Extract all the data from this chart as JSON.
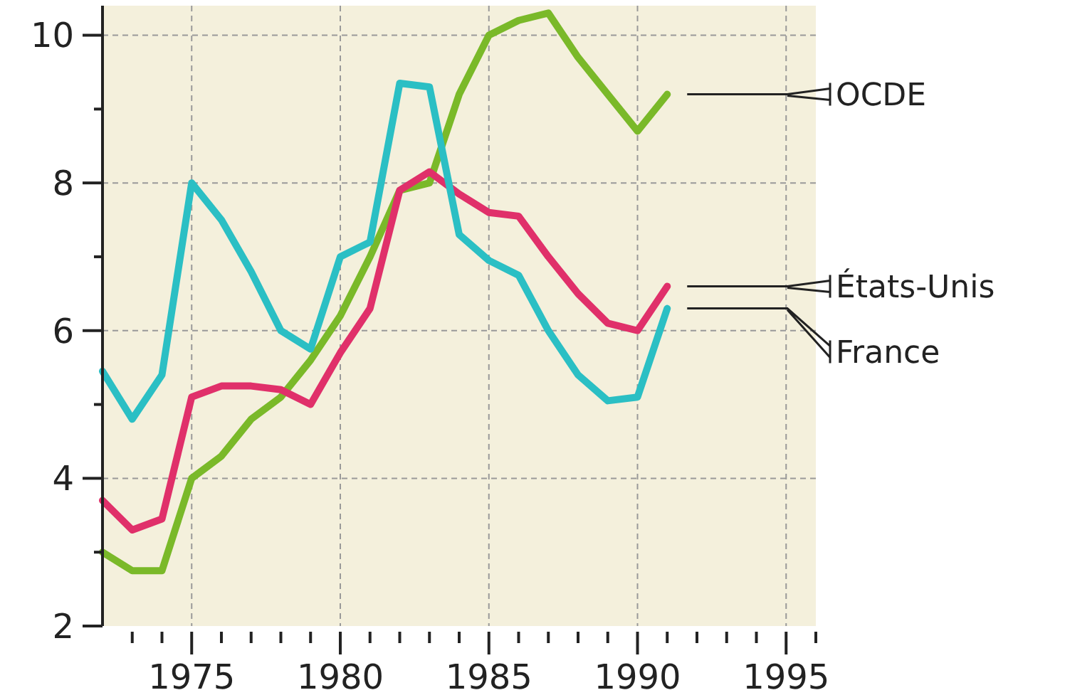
{
  "chart_data": {
    "type": "line",
    "x": [
      1972,
      1973,
      1974,
      1975,
      1976,
      1977,
      1978,
      1979,
      1980,
      1981,
      1982,
      1983,
      1984,
      1985,
      1986,
      1987,
      1988,
      1989,
      1990,
      1991
    ],
    "series": [
      {
        "name": "OCDE",
        "color": "#7ab929",
        "values": [
          3.0,
          2.75,
          2.75,
          4.0,
          4.3,
          4.8,
          5.1,
          5.6,
          6.2,
          7.0,
          7.9,
          8.0,
          9.2,
          10.0,
          10.2,
          10.3,
          9.7,
          9.2,
          8.7,
          9.2
        ]
      },
      {
        "name": "États-Unis",
        "color": "#e0306a",
        "values": [
          3.7,
          3.3,
          3.45,
          5.1,
          5.25,
          5.25,
          5.2,
          5.0,
          5.7,
          6.3,
          7.9,
          8.15,
          7.85,
          7.6,
          7.55,
          7.0,
          6.5,
          6.1,
          6.0,
          6.6
        ]
      },
      {
        "name": "France",
        "color": "#2bbfc4",
        "values": [
          5.45,
          4.8,
          5.4,
          8.0,
          7.5,
          6.8,
          6.0,
          5.75,
          7.0,
          7.2,
          9.35,
          9.3,
          7.3,
          6.95,
          6.75,
          6.0,
          5.4,
          5.05,
          5.1,
          6.3
        ]
      }
    ],
    "xlim": [
      1972,
      1996
    ],
    "xticks": [
      {
        "value": 1973,
        "label": null
      },
      {
        "value": 1974,
        "label": null
      },
      1975,
      {
        "value": 1976,
        "label": null
      },
      {
        "value": 1977,
        "label": null
      },
      {
        "value": 1978,
        "label": null
      },
      {
        "value": 1979,
        "label": null
      },
      1980,
      {
        "value": 1981,
        "label": null
      },
      {
        "value": 1982,
        "label": null
      },
      {
        "value": 1983,
        "label": null
      },
      {
        "value": 1984,
        "label": null
      },
      1985,
      {
        "value": 1986,
        "label": null
      },
      {
        "value": 1987,
        "label": null
      },
      {
        "value": 1988,
        "label": null
      },
      {
        "value": 1989,
        "label": null
      },
      1990,
      {
        "value": 1991,
        "label": null
      },
      {
        "value": 1992,
        "label": null
      },
      {
        "value": 1993,
        "label": null
      },
      {
        "value": 1994,
        "label": null
      },
      1995,
      {
        "value": 1996,
        "label": null
      }
    ],
    "ylim": [
      2,
      10.4
    ],
    "yticks": [
      2,
      {
        "value": 3,
        "label": null
      },
      4,
      {
        "value": 5,
        "label": null
      },
      6,
      {
        "value": 7,
        "label": null
      },
      8,
      {
        "value": 9,
        "label": null
      },
      10
    ],
    "grid": true,
    "line_style": "solid"
  }
}
